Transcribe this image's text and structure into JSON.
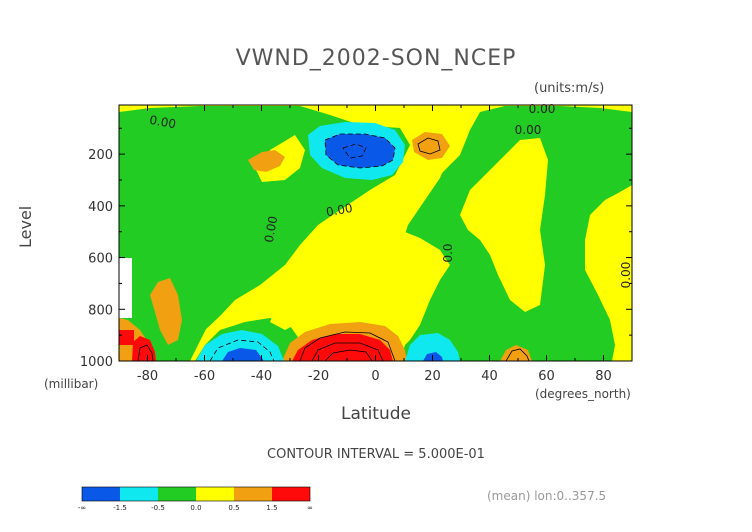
{
  "chart_data": {
    "type": "contour",
    "title": "VWND_2002-SON_NCEP",
    "units": "(units:m/s)",
    "xlabel": "Latitude",
    "x_units": "(degrees_north)",
    "ylabel": "Level",
    "y_units": "(millibar)",
    "xlim": [
      -90,
      90
    ],
    "ylim": [
      1000,
      10
    ],
    "y_inverted": true,
    "x_ticks": [
      -80,
      -60,
      -40,
      -20,
      0,
      20,
      40,
      60,
      80
    ],
    "y_ticks": [
      200,
      400,
      600,
      800,
      1000
    ],
    "contour_interval_text": "CONTOUR INTERVAL = 5.000E-01",
    "contour_labels": [
      "0.00",
      "0.00",
      "0.00",
      "0.00",
      "0.0",
      "0.00",
      "0.00"
    ],
    "footer_note": "(mean) lon:0..357.5",
    "colorbar": {
      "labels": [
        "-∞",
        "-1.5",
        "-0.5",
        "0.0",
        "0.5",
        "1.5",
        "∞"
      ],
      "colors": [
        "#0a58e8",
        "#10e8f0",
        "#22cc22",
        "#ffff00",
        "#f0a010",
        "#ff0a0a"
      ]
    },
    "features": [
      {
        "name": "strong negative core",
        "lat": -10,
        "level": 180,
        "value": -2.0
      },
      {
        "name": "positive core upper",
        "lat": 20,
        "level": 160,
        "value": 1.0
      },
      {
        "name": "positive core upper SH",
        "lat": -45,
        "level": 200,
        "value": 0.6
      },
      {
        "name": "strong positive surface core",
        "lat": -10,
        "level": 990,
        "value": 2.5
      },
      {
        "name": "negative surface core",
        "lat": -50,
        "level": 980,
        "value": -2.0
      },
      {
        "name": "negative surface core NH",
        "lat": 20,
        "level": 980,
        "value": -1.0
      },
      {
        "name": "positive polar surface",
        "lat": -85,
        "level": 960,
        "value": 2.0
      }
    ]
  },
  "colors": {
    "blue": "#0a58e8",
    "cyan": "#10e8f0",
    "green": "#22cc22",
    "yellow": "#ffff00",
    "orange": "#f0a010",
    "red": "#ff0a0a"
  }
}
